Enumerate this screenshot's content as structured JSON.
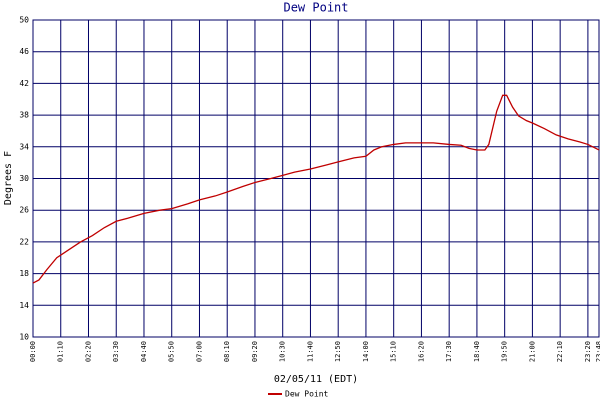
{
  "chart_data": {
    "type": "line",
    "title": "Dew Point",
    "x_label": "02/05/11 (EDT)",
    "y_label": "Degrees F",
    "x": [
      "00:00",
      "00:15",
      "00:35",
      "01:00",
      "01:30",
      "02:00",
      "02:30",
      "03:00",
      "03:30",
      "04:00",
      "04:40",
      "05:20",
      "05:50",
      "06:30",
      "07:00",
      "07:40",
      "08:10",
      "08:50",
      "09:20",
      "10:00",
      "10:30",
      "11:00",
      "11:40",
      "12:20",
      "12:50",
      "13:30",
      "14:00",
      "14:20",
      "14:40",
      "15:10",
      "15:40",
      "16:20",
      "16:50",
      "17:30",
      "18:00",
      "18:20",
      "18:40",
      "19:00",
      "19:10",
      "19:30",
      "19:45",
      "19:55",
      "20:10",
      "20:25",
      "20:45",
      "21:00",
      "21:30",
      "22:00",
      "22:30",
      "23:00",
      "23:20",
      "23:48"
    ],
    "series": [
      {
        "name": "Dew Point",
        "color": "#c00000",
        "values": [
          16.8,
          17.2,
          18.5,
          20,
          21,
          22,
          22.8,
          23.8,
          24.6,
          25.0,
          25.6,
          26.0,
          26.2,
          26.8,
          27.3,
          27.8,
          28.3,
          29,
          29.5,
          30.0,
          30.4,
          30.8,
          31.2,
          31.7,
          32.1,
          32.6,
          32.8,
          33.6,
          34.0,
          34.3,
          34.5,
          34.5,
          34.5,
          34.3,
          34.2,
          33.8,
          33.6,
          33.6,
          34.3,
          38.5,
          40.5,
          40.5,
          39.0,
          37.9,
          37.3,
          37.0,
          36.3,
          35.5,
          35.0,
          34.6,
          34.3,
          33.6
        ]
      }
    ],
    "xlim": [
      "00:00",
      "23:48"
    ],
    "xticks": [
      "00:00",
      "01:10",
      "02:20",
      "03:30",
      "04:40",
      "05:50",
      "07:00",
      "08:10",
      "09:20",
      "10:30",
      "11:40",
      "12:50",
      "14:00",
      "15:10",
      "16:20",
      "17:30",
      "18:40",
      "19:50",
      "21:00",
      "22:10",
      "23:20",
      "23:48"
    ],
    "ylim": [
      10,
      50
    ],
    "yticks": [
      10,
      14,
      18,
      22,
      26,
      30,
      34,
      38,
      42,
      46,
      50
    ],
    "grid": true,
    "grid_color": "#000066",
    "title_color": "#000080",
    "legend": "bottom"
  }
}
